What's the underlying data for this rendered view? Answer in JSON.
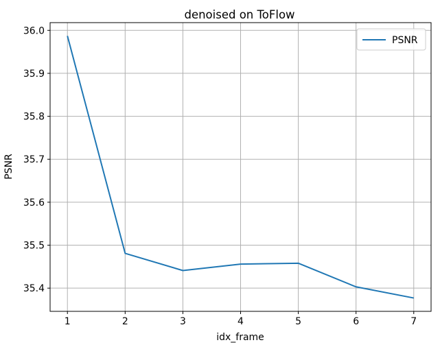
{
  "chart_data": {
    "type": "line",
    "title": "denoised on ToFlow",
    "xlabel": "idx_frame",
    "ylabel": "PSNR",
    "x": [
      1,
      2,
      3,
      4,
      5,
      6,
      7
    ],
    "series": [
      {
        "name": "PSNR",
        "color": "#1f77b4",
        "values": [
          35.987,
          35.481,
          35.441,
          35.456,
          35.458,
          35.403,
          35.377
        ]
      }
    ],
    "xticks": [
      "1",
      "2",
      "3",
      "4",
      "5",
      "6",
      "7"
    ],
    "yticks": [
      "35.4",
      "35.5",
      "35.6",
      "35.7",
      "35.8",
      "35.9",
      "36.0"
    ],
    "xlim": [
      0.7,
      7.3
    ],
    "ylim": [
      35.346,
      36.018
    ],
    "grid": true,
    "legend_position": "top-right"
  }
}
